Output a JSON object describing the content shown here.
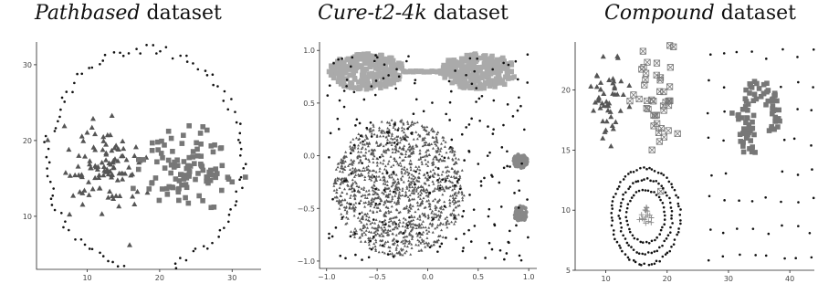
{
  "chart_data": [
    {
      "type": "scatter",
      "title_italic": "Pathbased",
      "title_rest": " dataset",
      "xlim": [
        3,
        34
      ],
      "ylim": [
        3,
        33
      ],
      "xticks": [
        {
          "v": 10,
          "t": "10"
        },
        {
          "v": 20,
          "t": "20"
        },
        {
          "v": 30,
          "t": "30"
        }
      ],
      "yticks": [
        {
          "v": 10,
          "t": "10"
        },
        {
          "v": 20,
          "t": "20"
        },
        {
          "v": 30,
          "t": "30"
        }
      ],
      "series": [
        {
          "marker": "dot",
          "color": "#111111",
          "gen": "ring",
          "params": {
            "cx": 18,
            "cy": 17.5,
            "rx": 13.5,
            "ry": 14.5,
            "count": 110,
            "jitter": 0.6,
            "gapStart": -100,
            "gapEnd": -80
          }
        },
        {
          "marker": "triangle",
          "color": "#555555",
          "gen": "cloud",
          "params": {
            "cx": 12.5,
            "cy": 16,
            "sx": 2.6,
            "sy": 2.8,
            "count": 110
          }
        },
        {
          "marker": "square",
          "color": "#777777",
          "gen": "cloud",
          "params": {
            "cx": 23.5,
            "cy": 16.5,
            "sx": 2.8,
            "sy": 2.6,
            "count": 110
          }
        }
      ]
    },
    {
      "type": "scatter",
      "title_italic": "Cure-t2-4k",
      "title_rest": " dataset",
      "xlim": [
        -1.07,
        1.08
      ],
      "ylim": [
        -1.07,
        1.08
      ],
      "xticks": [
        {
          "v": -1,
          "t": "−1.0"
        },
        {
          "v": -0.5,
          "t": "−0.5"
        },
        {
          "v": 0,
          "t": "0.0"
        },
        {
          "v": 0.5,
          "t": "0.5"
        },
        {
          "v": 1,
          "t": "1.0"
        }
      ],
      "yticks": [
        {
          "v": -1,
          "t": "−1.0"
        },
        {
          "v": -0.5,
          "t": "−0.5"
        },
        {
          "v": 0,
          "t": "0.0"
        },
        {
          "v": 0.5,
          "t": "0.5"
        },
        {
          "v": 1,
          "t": "1.0"
        }
      ],
      "series": [
        {
          "marker": "smalltri",
          "color": "#555555",
          "gen": "disk",
          "params": {
            "cx": -0.28,
            "cy": -0.3,
            "r": 0.65,
            "count": 1400
          }
        },
        {
          "marker": "square",
          "color": "#aaaaaa",
          "gen": "ellipse",
          "params": {
            "cx": -0.6,
            "cy": 0.8,
            "rx": 0.38,
            "ry": 0.17,
            "count": 260
          }
        },
        {
          "marker": "square",
          "color": "#aaaaaa",
          "gen": "ellipse",
          "params": {
            "cx": 0.5,
            "cy": 0.8,
            "rx": 0.38,
            "ry": 0.17,
            "count": 260
          }
        },
        {
          "marker": "square",
          "color": "#aaaaaa",
          "gen": "line",
          "params": {
            "x0": -0.22,
            "x1": 0.12,
            "y": 0.8,
            "count": 14
          }
        },
        {
          "marker": "disc",
          "color": "#888888",
          "gen": "disk",
          "params": {
            "cx": 0.92,
            "cy": -0.05,
            "r": 0.07,
            "count": 60
          }
        },
        {
          "marker": "disc",
          "color": "#888888",
          "gen": "disk",
          "params": {
            "cx": 0.92,
            "cy": -0.55,
            "r": 0.07,
            "count": 60
          }
        },
        {
          "marker": "dot",
          "color": "#111111",
          "gen": "uniform",
          "params": {
            "x0": -1.0,
            "x1": 1.0,
            "y0": -1.0,
            "y1": 1.0,
            "count": 220
          }
        }
      ]
    },
    {
      "type": "scatter",
      "title_italic": "Compound",
      "title_rest": " dataset",
      "xlim": [
        5,
        44
      ],
      "ylim": [
        5,
        24
      ],
      "xticks": [
        {
          "v": 10,
          "t": "10"
        },
        {
          "v": 20,
          "t": "20"
        },
        {
          "v": 30,
          "t": "30"
        },
        {
          "v": 40,
          "t": "40"
        }
      ],
      "yticks": [
        {
          "v": 5,
          "t": "5"
        },
        {
          "v": 10,
          "t": "10"
        },
        {
          "v": 15,
          "t": "15"
        },
        {
          "v": 20,
          "t": "20"
        }
      ],
      "series": [
        {
          "marker": "triangle",
          "color": "#555555",
          "gen": "cloud",
          "params": {
            "cx": 10.5,
            "cy": 19.5,
            "sx": 1.5,
            "sy": 1.7,
            "count": 50
          }
        },
        {
          "marker": "boxx",
          "color": "#777777",
          "gen": "cloud",
          "params": {
            "cx": 18.5,
            "cy": 19,
            "sx": 1.7,
            "sy": 2.3,
            "count": 45
          }
        },
        {
          "marker": "dot",
          "color": "#111111",
          "gen": "ring",
          "params": {
            "cx": 16.5,
            "cy": 9.5,
            "rx": 5.6,
            "ry": 4.0,
            "count": 70,
            "jitter": 0.15
          }
        },
        {
          "marker": "dot",
          "color": "#111111",
          "gen": "ring",
          "params": {
            "cx": 16.5,
            "cy": 9.5,
            "rx": 4.3,
            "ry": 3.1,
            "count": 55,
            "jitter": 0.15
          }
        },
        {
          "marker": "dot",
          "color": "#111111",
          "gen": "ring",
          "params": {
            "cx": 16.5,
            "cy": 9.5,
            "rx": 3.1,
            "ry": 2.2,
            "count": 40,
            "jitter": 0.12
          }
        },
        {
          "marker": "plus",
          "color": "#888888",
          "gen": "cloud",
          "params": {
            "cx": 16.5,
            "cy": 9.6,
            "sx": 0.6,
            "sy": 0.45,
            "count": 16
          }
        },
        {
          "marker": "square",
          "color": "#777777",
          "gen": "arc",
          "params": {
            "cx": 35,
            "cy": 17.6,
            "r": 2.6,
            "a0": -40,
            "a1": 220,
            "count": 60,
            "spread": 0.9
          }
        },
        {
          "marker": "square",
          "color": "#777777",
          "gen": "cloud",
          "params": {
            "cx": 33,
            "cy": 16.3,
            "sx": 0.9,
            "sy": 1.2,
            "count": 25
          }
        },
        {
          "marker": "dot",
          "color": "#111111",
          "gen": "grid",
          "params": {
            "x0": 27,
            "x1": 43.5,
            "y0": 6,
            "y1": 23,
            "nx": 8,
            "ny": 8,
            "avoid": {
              "cx": 34.5,
              "cy": 17,
              "rx": 4.5,
              "ry": 4.5
            }
          }
        }
      ]
    }
  ]
}
